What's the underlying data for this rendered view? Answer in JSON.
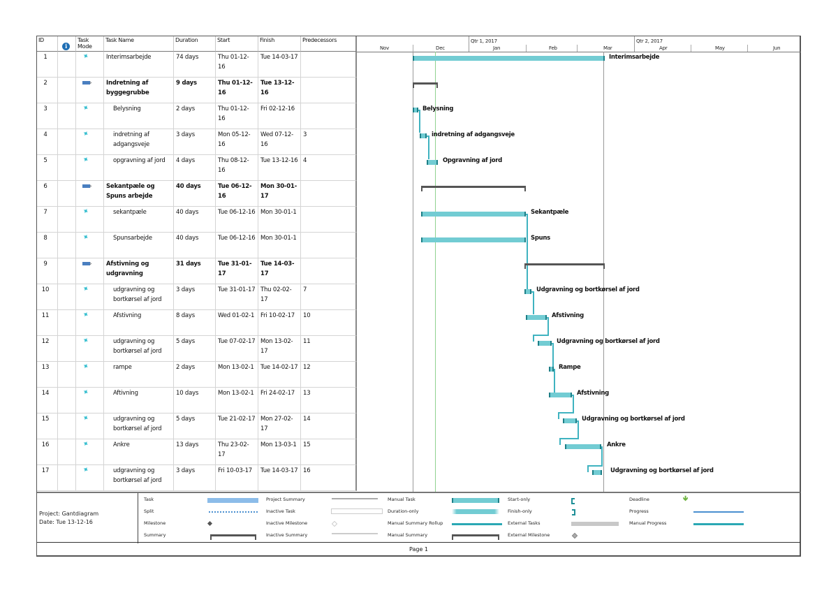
{
  "table": {
    "headers": {
      "id": "ID",
      "info": "i",
      "mode": "Task Mode",
      "name": "Task Name",
      "duration": "Duration",
      "start": "Start",
      "finish": "Finish",
      "predecessors": "Predecessors"
    },
    "rows": [
      {
        "id": "1",
        "mode": "manual",
        "name": "Interimsarbejde",
        "duration": "74 days",
        "start": "Thu 01-12-16",
        "finish": "Tue 14-03-17",
        "pred": "",
        "bold": false,
        "indent": false
      },
      {
        "id": "2",
        "mode": "auto",
        "name": "Indretning af byggegrubbe",
        "duration": "9 days",
        "start": "Thu 01-12-16",
        "finish": "Tue 13-12-16",
        "pred": "",
        "bold": true,
        "indent": false
      },
      {
        "id": "3",
        "mode": "manual",
        "name": "Belysning",
        "duration": "2 days",
        "start": "Thu 01-12-16",
        "finish": "Fri 02-12-16",
        "pred": "",
        "bold": false,
        "indent": true
      },
      {
        "id": "4",
        "mode": "manual",
        "name": "indretning af adgangsveje",
        "duration": "3 days",
        "start": "Mon 05-12-16",
        "finish": "Wed 07-12-16",
        "pred": "3",
        "bold": false,
        "indent": true
      },
      {
        "id": "5",
        "mode": "manual",
        "name": "opgravning af jord",
        "duration": "4 days",
        "start": "Thu 08-12-16",
        "finish": "Tue 13-12-16",
        "pred": "4",
        "bold": false,
        "indent": true
      },
      {
        "id": "6",
        "mode": "auto",
        "name": "Sekantpæle og Spuns arbejde",
        "duration": "40 days",
        "start": "Tue 06-12-16",
        "finish": "Mon 30-01-17",
        "pred": "",
        "bold": true,
        "indent": false
      },
      {
        "id": "7",
        "mode": "manual",
        "name": "sekantpæle",
        "duration": "40 days",
        "start": "Tue 06-12-16",
        "finish": "Mon 30-01-1",
        "pred": "",
        "bold": false,
        "indent": true
      },
      {
        "id": "8",
        "mode": "manual",
        "name": "Spunsarbejde",
        "duration": "40 days",
        "start": "Tue 06-12-16",
        "finish": "Mon 30-01-1",
        "pred": "",
        "bold": false,
        "indent": true
      },
      {
        "id": "9",
        "mode": "auto",
        "name": "Afstivning og udgravning",
        "duration": "31 days",
        "start": "Tue 31-01-17",
        "finish": "Tue 14-03-17",
        "pred": "",
        "bold": true,
        "indent": false
      },
      {
        "id": "10",
        "mode": "manual",
        "name": "udgravning og bortkørsel af jord",
        "duration": "3 days",
        "start": "Tue 31-01-17",
        "finish": "Thu 02-02-17",
        "pred": "7",
        "bold": false,
        "indent": true
      },
      {
        "id": "11",
        "mode": "manual",
        "name": "Afstivning",
        "duration": "8 days",
        "start": "Wed 01-02-1",
        "finish": "Fri 10-02-17",
        "pred": "10",
        "bold": false,
        "indent": true
      },
      {
        "id": "12",
        "mode": "manual",
        "name": "udgravning og bortkørsel af jord",
        "duration": "5 days",
        "start": "Tue 07-02-17",
        "finish": "Mon 13-02-17",
        "pred": "11",
        "bold": false,
        "indent": true
      },
      {
        "id": "13",
        "mode": "manual",
        "name": "rampe",
        "duration": "2 days",
        "start": "Mon 13-02-1",
        "finish": "Tue 14-02-17",
        "pred": "12",
        "bold": false,
        "indent": true
      },
      {
        "id": "14",
        "mode": "manual",
        "name": "Aftivning",
        "duration": "10 days",
        "start": "Mon 13-02-1",
        "finish": "Fri 24-02-17",
        "pred": "13",
        "bold": false,
        "indent": true
      },
      {
        "id": "15",
        "mode": "manual",
        "name": "udgravning og bortkørsel af jord",
        "duration": "5 days",
        "start": "Tue 21-02-17",
        "finish": "Mon 27-02-17",
        "pred": "14",
        "bold": false,
        "indent": true
      },
      {
        "id": "16",
        "mode": "manual",
        "name": "Ankre",
        "duration": "13 days",
        "start": "Thu 23-02-17",
        "finish": "Mon 13-03-1",
        "pred": "15",
        "bold": false,
        "indent": true
      },
      {
        "id": "17",
        "mode": "manual",
        "name": "udgravning og bortkørsel af jord",
        "duration": "3 days",
        "start": "Fri 10-03-17",
        "finish": "Tue 14-03-17",
        "pred": "16",
        "bold": false,
        "indent": true
      }
    ]
  },
  "timeline": {
    "quarters": [
      "Qtr 1, 2017",
      "Qtr 2, 2017"
    ],
    "months": [
      "Nov",
      "Dec",
      "Jan",
      "Feb",
      "Mar",
      "Apr",
      "May",
      "Jun"
    ]
  },
  "gantt": {
    "bar_labels": {
      "r1": "Interimsarbejde",
      "r3": "Belysning",
      "r4": "indretning af adgangsveje",
      "r5": "Opgravning af jord",
      "r7": "Sekantpæle",
      "r8": "Spuns",
      "r10": "Udgravning og bortkørsel af jord",
      "r11": "Afstivning",
      "r12": "Udgravning og bortkørsel af jord",
      "r13": "Rampe",
      "r14": "Afstivning",
      "r15": "Udgravning og bortkørsel af jord",
      "r16": "Ankre",
      "r17": "Udgravning og bortkørsel af jord"
    },
    "colors": {
      "manual_task": "#72ccd3",
      "manual_task_edge": "#1e7f87",
      "summary": "#555555",
      "link": "#3fb3c0",
      "today_line": "#8fd18f"
    }
  },
  "legend": {
    "project": "Project: Gantdiagram",
    "date": "Date: Tue 13-12-16",
    "col1": [
      "Task",
      "Split",
      "Milestone",
      "Summary"
    ],
    "col2": [
      "Project Summary",
      "Inactive Task",
      "Inactive Milestone",
      "Inactive Summary"
    ],
    "col3": [
      "Manual Task",
      "Duration-only",
      "Manual Summary Rollup",
      "Manual Summary"
    ],
    "col4": [
      "Start-only",
      "Finish-only",
      "External Tasks",
      "External Milestone"
    ],
    "col5": [
      "Deadline",
      "Progress",
      "Manual Progress"
    ]
  },
  "footer": {
    "page": "Page 1"
  }
}
